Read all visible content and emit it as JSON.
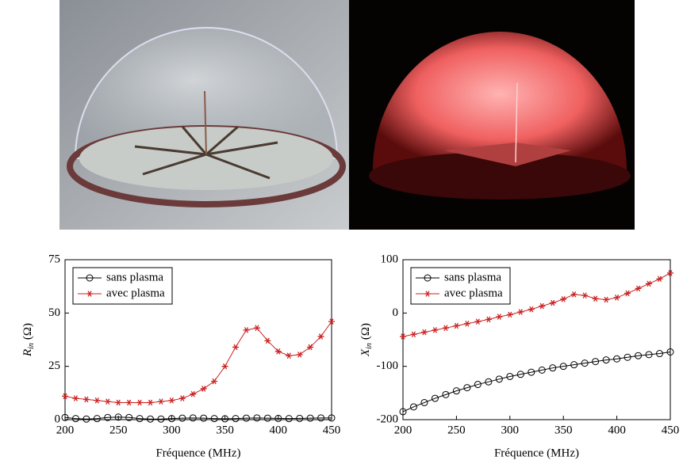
{
  "chart_data": [
    {
      "type": "line",
      "xlabel": "Fréquence (MHz)",
      "ylabel": [
        "R",
        "in",
        "(Ω)"
      ],
      "x": [
        200,
        210,
        220,
        230,
        240,
        250,
        260,
        270,
        280,
        290,
        300,
        310,
        320,
        330,
        340,
        350,
        360,
        370,
        380,
        390,
        400,
        410,
        420,
        430,
        440,
        450
      ],
      "xlim": [
        200,
        450
      ],
      "xticks": [
        200,
        250,
        300,
        350,
        400,
        450
      ],
      "ylim": [
        0,
        75
      ],
      "yticks": [
        0,
        25,
        50,
        75
      ],
      "legend": "upper left",
      "series": [
        {
          "name": "sans plasma",
          "color": "#000000",
          "marker": "circle",
          "values": [
            1,
            0.5,
            0.3,
            0.5,
            1,
            1.2,
            1,
            0.5,
            0.3,
            0.3,
            0.5,
            0.7,
            0.8,
            0.7,
            0.5,
            0.4,
            0.5,
            0.7,
            0.8,
            0.7,
            0.6,
            0.5,
            0.6,
            0.7,
            0.8,
            0.8
          ]
        },
        {
          "name": "avec plasma",
          "color": "#cc2222",
          "marker": "star",
          "values": [
            11,
            10,
            9.5,
            9,
            8.5,
            8,
            8,
            8,
            8,
            8.5,
            9,
            10,
            12,
            14.5,
            18,
            25,
            34,
            42,
            43,
            37,
            32,
            30,
            30.5,
            34,
            39,
            46
          ]
        }
      ]
    },
    {
      "type": "line",
      "xlabel": "Fréquence (MHz)",
      "ylabel": [
        "X",
        "in",
        "(Ω)"
      ],
      "x": [
        200,
        210,
        220,
        230,
        240,
        250,
        260,
        270,
        280,
        290,
        300,
        310,
        320,
        330,
        340,
        350,
        360,
        370,
        380,
        390,
        400,
        410,
        420,
        430,
        440,
        450
      ],
      "xlim": [
        200,
        450
      ],
      "xticks": [
        200,
        250,
        300,
        350,
        400,
        450
      ],
      "ylim": [
        -200,
        100
      ],
      "yticks": [
        -200,
        -100,
        0,
        100
      ],
      "legend": "upper left",
      "series": [
        {
          "name": "sans plasma",
          "color": "#000000",
          "marker": "circle",
          "values": [
            -185,
            -176,
            -168,
            -160,
            -153,
            -146,
            -140,
            -134,
            -129,
            -124,
            -119,
            -115,
            -111,
            -107,
            -103,
            -100,
            -97,
            -94,
            -91,
            -88,
            -86,
            -83,
            -80,
            -78,
            -76,
            -73
          ]
        },
        {
          "name": "avec plasma",
          "color": "#cc2222",
          "marker": "star",
          "values": [
            -44,
            -40,
            -36,
            -32,
            -28,
            -24,
            -20,
            -16,
            -12,
            -7,
            -3,
            2,
            7,
            13,
            19,
            26,
            35,
            33,
            27,
            25,
            29,
            37,
            46,
            55,
            64,
            75
          ]
        }
      ]
    }
  ]
}
